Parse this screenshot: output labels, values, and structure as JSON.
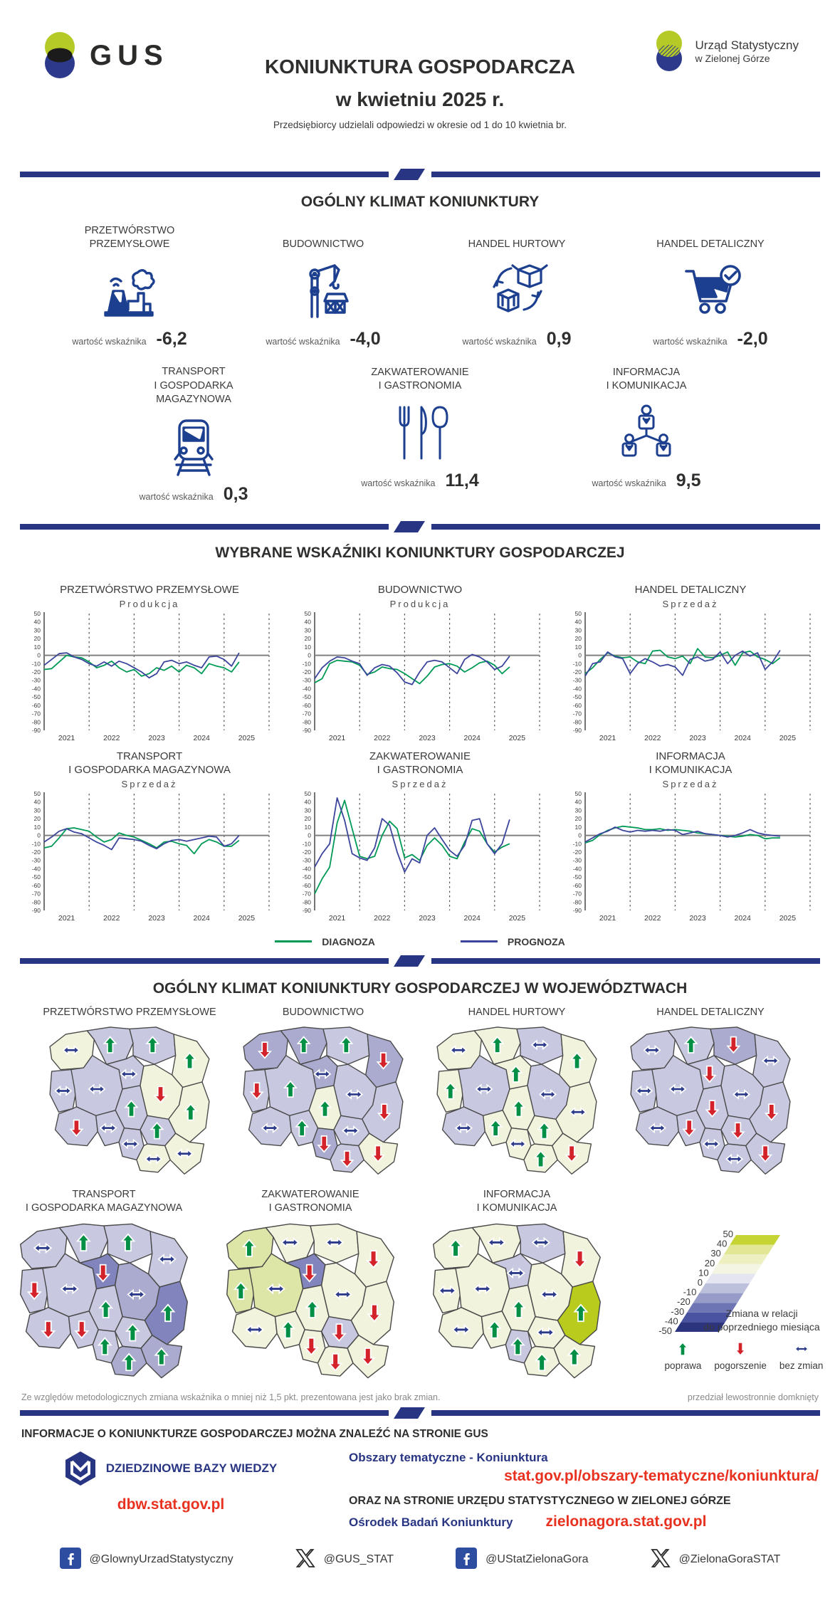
{
  "header": {
    "gus_logo_text": "GUS",
    "office_logo_line1": "Urząd Statystyczny",
    "office_logo_line2": "w Zielonej Górze",
    "title_line1": "KONIUNKTURA GOSPODARCZA",
    "title_line2": "w kwietniu 2025 r.",
    "subtitle": "Przedsiębiorcy udzielali odpowiedzi w okresie od 1 do 10 kwietnia br."
  },
  "colors": {
    "navy": "#283583",
    "icon_navy": "#1d3f8f",
    "diagnoza_green": "#009a57",
    "prognoza_navy": "#3c459c",
    "arrow_green": "#008f44",
    "arrow_red": "#d3222a",
    "arrow_navy": "#2c3a8a",
    "link_red": "#e8311f",
    "facebook_blue": "#2d4da1",
    "logo_green": "#b5c927",
    "logo_blue": "#2d3a8c"
  },
  "section1": {
    "title": "OGÓLNY KLIMAT KONIUNKTURY",
    "value_label": "wartość wskaźnika",
    "row1": [
      {
        "name_lines": [
          "PRZETWÓRSTWO",
          "PRZEMYSŁOWE"
        ],
        "icon": "factory-icon",
        "value": "-6,2"
      },
      {
        "name_lines": [
          "BUDOWNICTWO"
        ],
        "icon": "crane-icon",
        "value": "-4,0"
      },
      {
        "name_lines": [
          "HANDEL HURTOWY"
        ],
        "icon": "boxes-cycle-icon",
        "value": "0,9"
      },
      {
        "name_lines": [
          "HANDEL DETALICZNY"
        ],
        "icon": "cart-icon",
        "value": "-2,0"
      }
    ],
    "row2": [
      {
        "name_lines": [
          "TRANSPORT",
          "I GOSPODARKA",
          "MAGAZYNOWA"
        ],
        "icon": "train-icon",
        "value": "0,3"
      },
      {
        "name_lines": [
          "ZAKWATEROWANIE",
          "I GASTRONOMIA"
        ],
        "icon": "cutlery-icon",
        "value": "11,4"
      },
      {
        "name_lines": [
          "INFORMACJA",
          "I KOMUNIKACJA"
        ],
        "icon": "people-network-icon",
        "value": "9,5"
      }
    ]
  },
  "section2": {
    "title": "WYBRANE WSKAŹNIKI KONIUNKTURY GOSPODARCZEJ",
    "legend": [
      {
        "label": "DIAGNOZA",
        "color": "#009a57"
      },
      {
        "label": "PROGNOZA",
        "color": "#3c459c"
      }
    ]
  },
  "chart_data": {
    "type": "line",
    "x_years": [
      "2021",
      "2022",
      "2023",
      "2024",
      "2025"
    ],
    "ylim": [
      -90,
      50
    ],
    "yticks": [
      50,
      40,
      30,
      20,
      10,
      0,
      -10,
      -20,
      -30,
      -40,
      -50,
      -60,
      -70,
      -80,
      -90
    ],
    "x_month_step": 2,
    "x_domain_months": 60,
    "series_names": [
      "DIAGNOZA",
      "PROGNOZA"
    ],
    "charts": [
      {
        "title_lines": [
          "PRZETWÓRSTWO PRZEMYSŁOWE"
        ],
        "subtitle": "Produkcja",
        "diagnoza": [
          -17,
          -16,
          -8,
          0,
          -2,
          -3,
          -8,
          -15,
          -12,
          -7,
          -15,
          -20,
          -17,
          -25,
          -22,
          -15,
          -18,
          -13,
          -20,
          -12,
          -15,
          -22,
          -10,
          -13,
          -15,
          -20,
          -8
        ],
        "prognoza": [
          -12,
          -5,
          2,
          3,
          -2,
          -5,
          -10,
          -13,
          -8,
          -13,
          -7,
          -10,
          -15,
          -20,
          -27,
          -22,
          -8,
          -6,
          -10,
          -8,
          -12,
          -15,
          -2,
          -1,
          -5,
          -13,
          3
        ]
      },
      {
        "title_lines": [
          "BUDOWNICTWO"
        ],
        "subtitle": "Produkcja",
        "diagnoza": [
          -33,
          -28,
          -10,
          -6,
          -7,
          -8,
          -12,
          -23,
          -20,
          -14,
          -16,
          -17,
          -22,
          -28,
          -34,
          -25,
          -14,
          -11,
          -10,
          -13,
          -20,
          -15,
          -9,
          -7,
          -12,
          -22,
          -14
        ],
        "prognoza": [
          -28,
          -15,
          -7,
          -2,
          -3,
          -7,
          -10,
          -24,
          -15,
          -11,
          -13,
          -21,
          -32,
          -35,
          -20,
          -8,
          -6,
          -8,
          -15,
          -22,
          -5,
          1,
          -2,
          -8,
          -17,
          -13,
          -1
        ]
      },
      {
        "title_lines": [
          "HANDEL DETALICZNY"
        ],
        "subtitle": "Sprzedaż",
        "diagnoza": [
          -22,
          -15,
          -5,
          3,
          -1,
          -3,
          -2,
          -8,
          -10,
          5,
          6,
          -2,
          -4,
          -1,
          -10,
          8,
          -2,
          -3,
          0,
          4,
          -12,
          3,
          5,
          -2,
          -5,
          -10,
          -3
        ],
        "prognoza": [
          -25,
          -10,
          -8,
          4,
          -2,
          -4,
          -22,
          -10,
          -4,
          -8,
          -13,
          -11,
          -14,
          -24,
          -5,
          -2,
          -7,
          -5,
          4,
          -10,
          0,
          5,
          -1,
          3,
          -17,
          -8,
          6
        ]
      },
      {
        "title_lines": [
          "TRANSPORT",
          "I GOSPODARKA MAGAZYNOWA"
        ],
        "subtitle": "Sprzedaż",
        "diagnoza": [
          -15,
          -13,
          -3,
          8,
          9,
          7,
          5,
          -2,
          -8,
          -5,
          3,
          0,
          -2,
          -6,
          -10,
          -15,
          -8,
          -7,
          -10,
          -12,
          -22,
          -10,
          -5,
          -8,
          -13,
          -13,
          -6
        ],
        "prognoza": [
          -8,
          -2,
          5,
          8,
          4,
          2,
          -3,
          -8,
          -12,
          -17,
          -3,
          -4,
          -5,
          -7,
          -12,
          -16,
          -10,
          -6,
          -5,
          -7,
          -5,
          -3,
          -1,
          -2,
          -13,
          -10,
          0
        ]
      },
      {
        "title_lines": [
          "ZAKWATEROWANIE",
          "I GASTRONOMIA"
        ],
        "subtitle": "Sprzedaż",
        "diagnoza": [
          -70,
          -52,
          -38,
          15,
          42,
          8,
          -25,
          -28,
          -25,
          0,
          17,
          8,
          -27,
          -23,
          -30,
          -12,
          -3,
          -12,
          -25,
          -28,
          -8,
          8,
          5,
          -10,
          -20,
          -14,
          -10
        ],
        "prognoza": [
          -38,
          -22,
          -10,
          45,
          18,
          -22,
          -27,
          -30,
          -15,
          20,
          12,
          -20,
          -44,
          -28,
          -33,
          0,
          9,
          -5,
          -18,
          -25,
          -12,
          18,
          20,
          -10,
          -22,
          -10,
          19
        ]
      },
      {
        "title_lines": [
          "INFORMACJA",
          "I KOMUNIKACJA"
        ],
        "subtitle": "Sprzedaż",
        "diagnoza": [
          -9,
          -6,
          1,
          6,
          9,
          11,
          10,
          9,
          7,
          7,
          8,
          6,
          7,
          6,
          5,
          3,
          2,
          1,
          0,
          -1,
          -2,
          -1,
          1,
          0,
          -4,
          -3,
          -3
        ],
        "prognoza": [
          -8,
          -3,
          2,
          5,
          10,
          6,
          4,
          6,
          5,
          6,
          5,
          7,
          6,
          1,
          3,
          5,
          2,
          1,
          0,
          -2,
          0,
          3,
          7,
          3,
          1,
          0,
          -1
        ]
      }
    ]
  },
  "section3": {
    "title": "OGÓLNY KLIMAT KONIUNKTURY GOSPODARCZEJ W WOJEWÓDZTWACH",
    "palette": {
      "cream": "#f2f3dd",
      "lav1": "#c8c9e1",
      "lav2": "#aaabce",
      "lav3": "#8184bd",
      "green2": "#dde6a6",
      "bright": "#b9cc1e"
    },
    "region_order": [
      "zp",
      "pm",
      "wm",
      "pd",
      "lb",
      "wp",
      "kp",
      "mz",
      "ld",
      "lu",
      "ds",
      "op",
      "sl",
      "sw",
      "mp",
      "pk"
    ],
    "maps": [
      {
        "label_lines": [
          "PRZETWÓRSTWO PRZEMYSŁOWE"
        ],
        "fills": [
          "cream",
          "lav1",
          "lav1",
          "cream",
          "lav1",
          "lav1",
          "lav1",
          "cream",
          "lav1",
          "cream",
          "lav1",
          "lav1",
          "lav1",
          "lav1",
          "cream",
          "cream"
        ],
        "arrows": [
          "eq",
          "up",
          "up",
          "up",
          "eq",
          "eq",
          "eq",
          "down",
          "up",
          "up",
          "down",
          "eq",
          "eq",
          "up",
          "eq",
          "eq"
        ]
      },
      {
        "label_lines": [
          "BUDOWNICTWO"
        ],
        "fills": [
          "lav2",
          "lav2",
          "lav1",
          "lav2",
          "lav1",
          "lav1",
          "lav2",
          "lav1",
          "cream",
          "lav1",
          "lav1",
          "lav1",
          "lav2",
          "lav1",
          "lav1",
          "cream"
        ],
        "arrows": [
          "down",
          "up",
          "up",
          "down",
          "down",
          "up",
          "eq",
          "eq",
          "up",
          "down",
          "eq",
          "up",
          "down",
          "eq",
          "down",
          "down"
        ]
      },
      {
        "label_lines": [
          "HANDEL HURTOWY"
        ],
        "fills": [
          "cream",
          "cream",
          "lav1",
          "cream",
          "cream",
          "lav1",
          "cream",
          "lav1",
          "cream",
          "cream",
          "lav1",
          "cream",
          "cream",
          "cream",
          "cream",
          "cream"
        ],
        "arrows": [
          "eq",
          "up",
          "eq",
          "up",
          "up",
          "eq",
          "up",
          "eq",
          "up",
          "eq",
          "eq",
          "up",
          "eq",
          "up",
          "up",
          "down"
        ]
      },
      {
        "label_lines": [
          "HANDEL DETALICZNY"
        ],
        "fills": [
          "lav1",
          "lav1",
          "lav2",
          "lav1",
          "lav1",
          "lav1",
          "lav1",
          "lav1",
          "lav1",
          "lav1",
          "lav1",
          "lav1",
          "lav1",
          "lav1",
          "lav1",
          "lav1"
        ],
        "arrows": [
          "eq",
          "up",
          "down",
          "eq",
          "eq",
          "eq",
          "down",
          "eq",
          "down",
          "down",
          "eq",
          "down",
          "eq",
          "down",
          "eq",
          "down"
        ]
      },
      {
        "label_lines": [
          "TRANSPORT",
          "I GOSPODARKA MAGAZYNOWA"
        ],
        "fills": [
          "lav1",
          "lav1",
          "lav1",
          "lav1",
          "lav1",
          "lav1",
          "lav3",
          "lav2",
          "lav1",
          "lav3",
          "lav1",
          "lav1",
          "lav1",
          "lav1",
          "lav2",
          "lav2"
        ],
        "arrows": [
          "eq",
          "up",
          "up",
          "eq",
          "down",
          "eq",
          "down",
          "eq",
          "up",
          "up",
          "down",
          "down",
          "up",
          "up",
          "up",
          "up"
        ]
      },
      {
        "label_lines": [
          "ZAKWATEROWANIE",
          "I GASTRONOMIA"
        ],
        "fills": [
          "green2",
          "cream",
          "cream",
          "cream",
          "green2",
          "green2",
          "lav3",
          "cream",
          "cream",
          "cream",
          "cream",
          "cream",
          "cream",
          "lav1",
          "cream",
          "cream"
        ],
        "arrows": [
          "up",
          "eq",
          "eq",
          "down",
          "up",
          "eq",
          "down",
          "eq",
          "up",
          "down",
          "eq",
          "up",
          "down",
          "down",
          "down",
          "down"
        ]
      },
      {
        "label_lines": [
          "INFORMACJA",
          "I KOMUNIKACJA"
        ],
        "fills": [
          "cream",
          "cream",
          "lav1",
          "cream",
          "cream",
          "cream",
          "lav1",
          "cream",
          "cream",
          "bright",
          "cream",
          "cream",
          "lav1",
          "cream",
          "cream",
          "cream"
        ],
        "arrows": [
          "up",
          "eq",
          "eq",
          "down",
          "eq",
          "eq",
          "eq",
          "eq",
          "up",
          "up",
          "eq",
          "up",
          "up",
          "eq",
          "up",
          "up"
        ]
      }
    ],
    "scale": {
      "ticks": [
        "50",
        "40",
        "30",
        "20",
        "10",
        "0",
        "-10",
        "-20",
        "-30",
        "-40",
        "-50"
      ],
      "band_colors_bottom_to_top": [
        "#2c3480",
        "#4a53a0",
        "#6e75b4",
        "#969bc8",
        "#bcc0da",
        "#e4e5f0",
        "#f4f5e3",
        "#eef0c2",
        "#e2e795",
        "#c5d433"
      ],
      "caption_line1": "Zmiana w relacji",
      "caption_line2": "do poprzedniego miesiąca",
      "arrow_labels": {
        "up": "poprawa",
        "down": "pogorszenie",
        "eq": "bez zmian"
      }
    },
    "footnote_left": "Ze względów metodologicznych zmiana wskaźnika o mniej niż 1,5 pkt. prezentowana jest jako brak zmian.",
    "footnote_right": "przedział lewostronnie domknięty"
  },
  "footer": {
    "heading": "INFORMACJE O KONIUNKTURZE GOSPODARCZEJ MOŻNA ZNALEŹĆ NA STRONIE GUS",
    "dbw_label": "DZIEDZINOWE BAZY WIEDZY",
    "dbw_url": "dbw.stat.gov.pl",
    "topics_label": "Obszary tematyczne - Koniunktura",
    "topics_url": "stat.gov.pl/obszary-tematyczne/koniunktura/",
    "oraz_line": "ORAZ NA STRONIE URZĘDU STATYSTYCZNEGO W ZIELONEJ GÓRZE",
    "osrodek_label": "Ośrodek Badań Koniunktury",
    "osrodek_url": "zielonagora.stat.gov.pl"
  },
  "social": [
    {
      "icon": "facebook-icon",
      "handle": "@GlownyUrzadStatystyczny"
    },
    {
      "icon": "x-icon",
      "handle": "@GUS_STAT"
    },
    {
      "icon": "facebook-icon",
      "handle": "@UStatZielonaGora"
    },
    {
      "icon": "x-icon",
      "handle": "@ZielonaGoraSTAT"
    }
  ]
}
